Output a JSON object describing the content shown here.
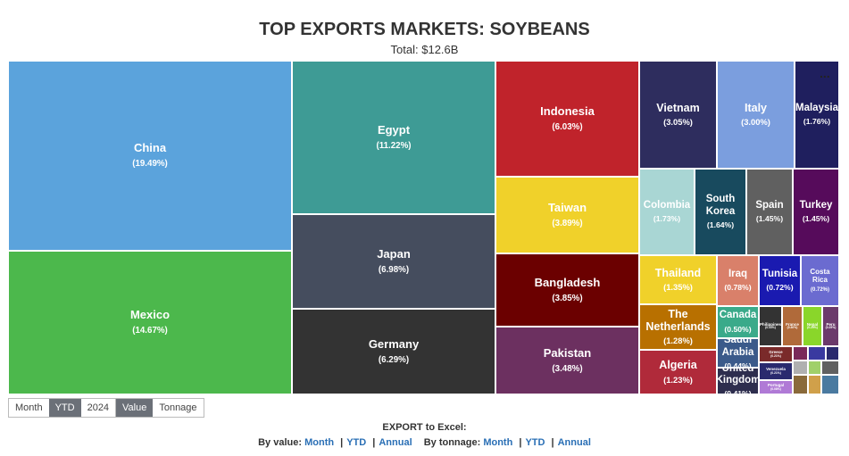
{
  "chart_data": {
    "type": "treemap",
    "title": "TOP EXPORTS MARKETS: SOYBEANS",
    "subtitle": "Total: $12.6B",
    "categories": [
      "China",
      "Mexico",
      "Egypt",
      "Japan",
      "Germany",
      "Indonesia",
      "Taiwan",
      "Bangladesh",
      "Pakistan",
      "Vietnam",
      "Italy",
      "Malaysia",
      "Colombia",
      "South Korea",
      "Spain",
      "Turkey",
      "Thailand",
      "Iraq",
      "Tunisia",
      "Costa Rica",
      "The Netherlands",
      "Algeria",
      "Canada",
      "Saudi Arabia",
      "United Kingdom",
      "Philippines",
      "France",
      "Nepal",
      "Peru",
      "Greece",
      "Venezuela",
      "Portugal"
    ],
    "values": [
      19.49,
      14.67,
      11.22,
      6.98,
      6.29,
      6.03,
      3.89,
      3.85,
      3.48,
      3.05,
      3.0,
      1.76,
      1.73,
      1.64,
      1.45,
      1.45,
      1.35,
      0.78,
      0.72,
      0.72,
      1.28,
      1.23,
      0.5,
      0.44,
      0.41,
      0.33,
      0.3,
      0.29,
      0.25,
      0.21,
      0.21,
      0.08
    ],
    "value_labels": [
      "(19.49%)",
      "(14.67%)",
      "(11.22%)",
      "(6.98%)",
      "(6.29%)",
      "(6.03%)",
      "(3.89%)",
      "(3.85%)",
      "(3.48%)",
      "(3.05%)",
      "(3.00%)",
      "(1.76%)",
      "(1.73%)",
      "(1.64%)",
      "(1.45%)",
      "(1.45%)",
      "(1.35%)",
      "(0.78%)",
      "(0.72%)",
      "(0.72%)",
      "(1.28%)",
      "(1.23%)",
      "(0.50%)",
      "(0.44%)",
      "(0.41%)",
      "(0.33%)",
      "(0.30%)",
      "(0.29%)",
      "(0.25%)",
      "(0.21%)",
      "(0.21%)",
      "(0.08%)"
    ],
    "colors": [
      "#5ba3dc",
      "#4cb84c",
      "#3e9b95",
      "#454d5e",
      "#333333",
      "#c0232b",
      "#f0d12a",
      "#6b0000",
      "#6c3060",
      "#2e2d5e",
      "#7b9ede",
      "#1f1f5e",
      "#a9d6d4",
      "#184a5e",
      "#606060",
      "#560b5b",
      "#f0d12a",
      "#d9806a",
      "#1a1ab0",
      "#6b6bd0",
      "#b87000",
      "#b02a3a",
      "#3aaa8a",
      "#3b5a8a",
      "#2e2e4e",
      "#333333",
      "#b06a3a",
      "#8ad62a",
      "#6b3a6b",
      "#7a2a2a",
      "#2a2a6e",
      "#b07ad6"
    ]
  },
  "controls": {
    "menu": "...",
    "period": [
      "Month",
      "YTD",
      "2024"
    ],
    "period_selected": "YTD",
    "measure": [
      "Value",
      "Tonnage"
    ],
    "measure_selected": "Value",
    "export_title": "EXPORT to Excel:",
    "by_value": "By value:",
    "by_tonnage": "By tonnage:",
    "link_month": "Month",
    "link_ytd": "YTD",
    "link_annual": "Annual",
    "separator": "|"
  }
}
